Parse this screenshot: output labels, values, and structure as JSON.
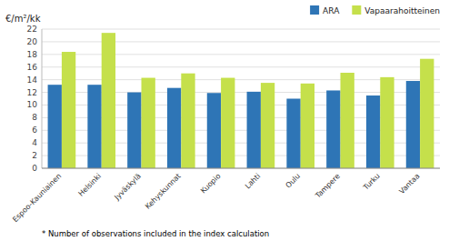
{
  "chart_data": {
    "type": "bar",
    "ylabel": "€/m²/kk",
    "categories": [
      "Espoo-Kauniainen",
      "Helsinki",
      "Jyväskylä",
      "Kehyskunnat",
      "Kuopio",
      "Lahti",
      "Oulu",
      "Tampere",
      "Turku",
      "Vantaa"
    ],
    "series": [
      {
        "name": "ARA",
        "color": "#2e75b6",
        "values": [
          13.2,
          13.2,
          12.0,
          12.7,
          11.9,
          12.1,
          11.0,
          12.3,
          11.5,
          13.8
        ]
      },
      {
        "name": "Vapaarahoitteinen",
        "color": "#c5e04b",
        "values": [
          18.4,
          21.4,
          14.3,
          15.0,
          14.3,
          13.5,
          13.4,
          15.1,
          14.4,
          17.3
        ]
      }
    ],
    "ylim": [
      0,
      22
    ],
    "yticks": [
      0,
      2,
      4,
      6,
      8,
      10,
      12,
      14,
      16,
      18,
      20,
      22
    ],
    "grid": true,
    "legend": "upper right",
    "annotations": [
      "* Number of observations included in the index calculation"
    ]
  }
}
